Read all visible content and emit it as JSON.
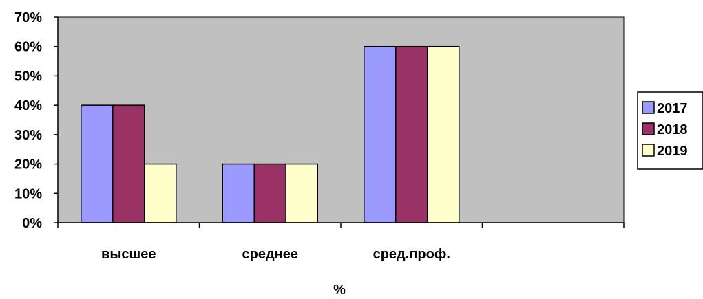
{
  "chart_data": {
    "type": "bar",
    "title": "",
    "xlabel": "%",
    "ylabel": "",
    "categories": [
      "высшее",
      "среднее",
      "сред.проф.",
      ""
    ],
    "series": [
      {
        "name": "2017",
        "values": [
          40,
          20,
          60,
          null
        ],
        "color": "#9999ff"
      },
      {
        "name": "2018",
        "values": [
          40,
          20,
          60,
          null
        ],
        "color": "#993366"
      },
      {
        "name": "2019",
        "values": [
          20,
          20,
          60,
          null
        ],
        "color": "#ffffcc"
      }
    ],
    "ylim": [
      0,
      70
    ],
    "yticks": [
      "0%",
      "10%",
      "20%",
      "30%",
      "40%",
      "50%",
      "60%",
      "70%"
    ],
    "plot_background": "#c0c0c0",
    "grid": false,
    "legend_position": "right"
  }
}
